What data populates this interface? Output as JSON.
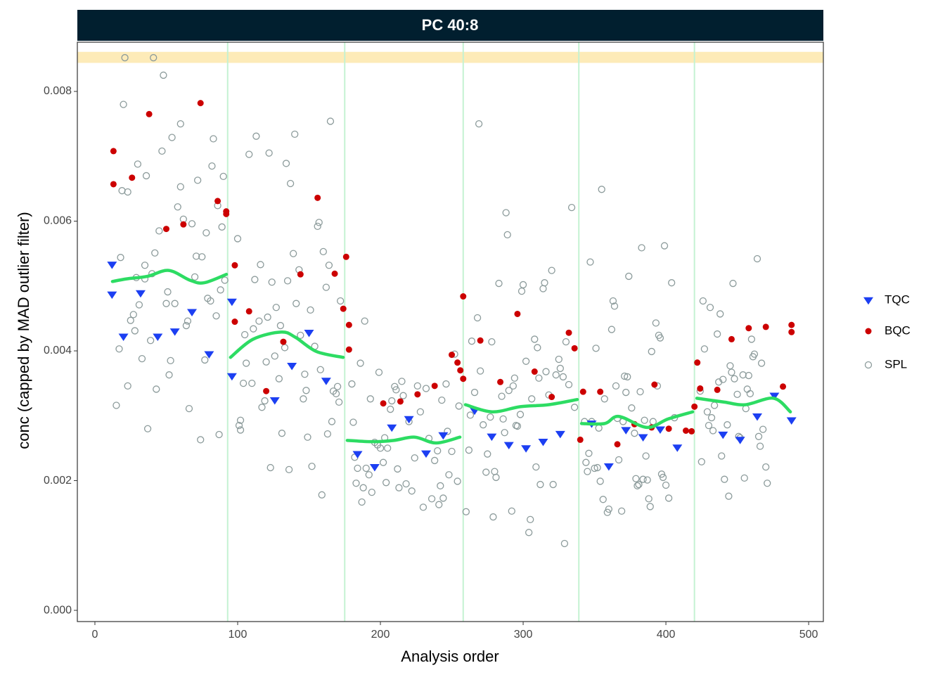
{
  "chart_data": {
    "type": "scatter",
    "title": "PC 40:8",
    "x_label": "Analysis order",
    "y_label": "conc (capped by MAD outlier filter)",
    "xlim": [
      -12.3,
      510.3
    ],
    "ylim": [
      -0.000173,
      0.008759
    ],
    "xticks": [
      0,
      100,
      200,
      300,
      400,
      500
    ],
    "yticks": [
      {
        "value": 0,
        "label": "0.000"
      },
      0.002,
      0.004,
      0.006,
      0.008
    ],
    "band": [
      0.00844,
      0.00861
    ],
    "band_color": "#fdebb8",
    "batch_lines": [
      93,
      175,
      258,
      339,
      420
    ],
    "batch_line_color": "#c4f2d2",
    "trend_color": "#2ddc63",
    "trend_lines": [
      {
        "x": [
          12.3,
          22.2,
          36.9,
          51.7,
          66.5,
          76.4,
          92.1
        ],
        "values": [
          0.00507,
          0.00511,
          0.00515,
          0.00524,
          0.00509,
          0.00505,
          0.00518
        ]
      },
      {
        "x": [
          95,
          110.8,
          130.5,
          140.4,
          155.2,
          173.9
        ],
        "values": [
          0.0039,
          0.00418,
          0.00429,
          0.00421,
          0.00399,
          0.0039
        ]
      },
      {
        "x": [
          176.8,
          194.6,
          209.4,
          224.1,
          238.9,
          255.7
        ],
        "values": [
          0.00262,
          0.0026,
          0.00262,
          0.00267,
          0.00258,
          0.00267
        ]
      },
      {
        "x": [
          259.6,
          278.3,
          298,
          317.7,
          337.9
        ],
        "values": [
          0.00317,
          0.00306,
          0.00314,
          0.00317,
          0.00325
        ]
      },
      {
        "x": [
          340.9,
          357.1,
          367,
          386.7,
          401.5,
          418.7
        ],
        "values": [
          0.00288,
          0.00288,
          0.00299,
          0.00282,
          0.00295,
          0.00306
        ]
      },
      {
        "x": [
          421.7,
          440.9,
          455.7,
          475.4,
          487.2
        ],
        "values": [
          0.00327,
          0.00321,
          0.00317,
          0.00327,
          0.00306
        ]
      }
    ],
    "series": [
      {
        "name": "TQC",
        "color": "#1c3ff2",
        "marker": "triangle-down",
        "x": [
          12,
          12,
          20,
          32,
          44,
          56,
          68,
          80,
          96,
          96,
          126,
          138,
          150,
          162,
          184,
          196,
          208,
          220,
          232,
          244,
          266,
          278,
          290,
          302,
          314,
          326,
          348,
          360,
          372,
          384,
          396,
          408,
          440,
          452,
          464,
          476,
          488
        ],
        "values": [
          0.00533,
          0.00487,
          0.00422,
          0.00489,
          0.00422,
          0.0043,
          0.0046,
          0.00395,
          0.00361,
          0.00476,
          0.00324,
          0.00377,
          0.00428,
          0.00354,
          0.00241,
          0.00221,
          0.00282,
          0.00295,
          0.00242,
          0.0027,
          0.00308,
          0.00268,
          0.00255,
          0.0025,
          0.0026,
          0.00272,
          0.00288,
          0.00222,
          0.00278,
          0.00267,
          0.00279,
          0.00251,
          0.00271,
          0.00263,
          0.00299,
          0.00331,
          0.00293
        ]
      },
      {
        "name": "BQC",
        "color": "#cc0000",
        "marker": "circle",
        "x": [
          13,
          13,
          26,
          38,
          50,
          62,
          74,
          86,
          92,
          92,
          98,
          98,
          108,
          120,
          132,
          144,
          156,
          168,
          174,
          176,
          178,
          178,
          202,
          214,
          226,
          238,
          250,
          254,
          256,
          258,
          258,
          270,
          284,
          296,
          308,
          320,
          332,
          336,
          340,
          342,
          354,
          366,
          378,
          390,
          392,
          402,
          414,
          418,
          420,
          422,
          424,
          436,
          446,
          458,
          470,
          482,
          488,
          488
        ],
        "values": [
          0.00708,
          0.00657,
          0.00667,
          0.00765,
          0.00588,
          0.00595,
          0.00782,
          0.00631,
          0.00611,
          0.00615,
          0.00445,
          0.00532,
          0.00461,
          0.00338,
          0.00414,
          0.00518,
          0.00636,
          0.00519,
          0.00465,
          0.00545,
          0.0044,
          0.00402,
          0.00319,
          0.00322,
          0.00333,
          0.00346,
          0.00394,
          0.00382,
          0.0037,
          0.00357,
          0.00484,
          0.00416,
          0.00352,
          0.00457,
          0.00368,
          0.00329,
          0.00428,
          0.00404,
          0.00263,
          0.00337,
          0.00337,
          0.00256,
          0.00287,
          0.00282,
          0.00348,
          0.0028,
          0.00277,
          0.00276,
          0.00314,
          0.00382,
          0.00342,
          0.0034,
          0.00418,
          0.00435,
          0.00437,
          0.00345,
          0.0044,
          0.00429
        ]
      },
      {
        "name": "SPL",
        "color": "#8c9b9b",
        "marker": "circle-open",
        "x": [
          15,
          17,
          18,
          19,
          20,
          21,
          23,
          23,
          25,
          27,
          28,
          29,
          30,
          31,
          33,
          35,
          35,
          36,
          37,
          39,
          40,
          41,
          42,
          43,
          45,
          47,
          48,
          50,
          51,
          52,
          53,
          54,
          56,
          58,
          60,
          60,
          62,
          64,
          65,
          66,
          68,
          70,
          71,
          72,
          74,
          75,
          77,
          78,
          79,
          81,
          82,
          83,
          85,
          86,
          87,
          88,
          89,
          90,
          91,
          100,
          101,
          102,
          102,
          104,
          105,
          106,
          108,
          110,
          111,
          112,
          113,
          115,
          116,
          117,
          119,
          120,
          121,
          122,
          123,
          124,
          126,
          127,
          129,
          130,
          131,
          133,
          134,
          135,
          136,
          137,
          139,
          140,
          141,
          143,
          144,
          146,
          147,
          148,
          149,
          151,
          152,
          154,
          156,
          157,
          158,
          159,
          160,
          162,
          163,
          164,
          165,
          166,
          167,
          169,
          170,
          171,
          172,
          180,
          181,
          182,
          183,
          184,
          186,
          187,
          188,
          189,
          190,
          192,
          193,
          194,
          196,
          198,
          199,
          200,
          202,
          203,
          204,
          205,
          207,
          208,
          210,
          211,
          212,
          213,
          215,
          216,
          218,
          220,
          222,
          224,
          226,
          228,
          230,
          232,
          234,
          236,
          238,
          240,
          241,
          242,
          243,
          244,
          246,
          247,
          248,
          250,
          252,
          254,
          255,
          260,
          262,
          263,
          264,
          266,
          268,
          269,
          270,
          272,
          274,
          275,
          277,
          278,
          279,
          280,
          281,
          283,
          285,
          286,
          287,
          288,
          289,
          290,
          292,
          293,
          294,
          295,
          296,
          298,
          299,
          300,
          302,
          304,
          305,
          306,
          308,
          309,
          310,
          311,
          312,
          314,
          315,
          316,
          318,
          320,
          321,
          323,
          325,
          326,
          328,
          329,
          330,
          332,
          334,
          336,
          343,
          344,
          345,
          346,
          347,
          348,
          350,
          351,
          352,
          353,
          354,
          355,
          356,
          357,
          359,
          360,
          362,
          363,
          364,
          365,
          366,
          367,
          369,
          370,
          371,
          372,
          373,
          374,
          376,
          378,
          379,
          380,
          381,
          382,
          383,
          384,
          385,
          386,
          387,
          388,
          389,
          390,
          391,
          393,
          394,
          395,
          396,
          397,
          398,
          399,
          400,
          402,
          404,
          406,
          424,
          425,
          426,
          427,
          429,
          430,
          431,
          432,
          433,
          434,
          436,
          437,
          438,
          439,
          440,
          441,
          443,
          444,
          445,
          446,
          447,
          448,
          450,
          451,
          452,
          454,
          455,
          456,
          457,
          458,
          459,
          460,
          461,
          462,
          464,
          465,
          466,
          467,
          468,
          470,
          471
        ],
        "values": [
          0.00316,
          0.00403,
          0.00544,
          0.00647,
          0.0078,
          0.00852,
          0.00346,
          0.00645,
          0.00447,
          0.00456,
          0.00431,
          0.00513,
          0.00688,
          0.00471,
          0.00388,
          0.00511,
          0.00532,
          0.0067,
          0.0028,
          0.00416,
          0.00519,
          0.00852,
          0.00551,
          0.00341,
          0.00585,
          0.00708,
          0.00825,
          0.00473,
          0.00491,
          0.00363,
          0.00385,
          0.00729,
          0.00473,
          0.00622,
          0.0075,
          0.00653,
          0.00603,
          0.00439,
          0.00446,
          0.00311,
          0.00596,
          0.00514,
          0.00546,
          0.00663,
          0.00263,
          0.00545,
          0.00386,
          0.00582,
          0.00481,
          0.00477,
          0.00685,
          0.00727,
          0.00454,
          0.00624,
          0.00271,
          0.00494,
          0.00591,
          0.00669,
          0.00509,
          0.00573,
          0.00285,
          0.00293,
          0.00278,
          0.0035,
          0.00425,
          0.00381,
          0.00703,
          0.0035,
          0.00434,
          0.0051,
          0.00731,
          0.00446,
          0.00533,
          0.00313,
          0.00323,
          0.00383,
          0.00452,
          0.00705,
          0.0022,
          0.00506,
          0.00392,
          0.00467,
          0.00357,
          0.00439,
          0.00273,
          0.00405,
          0.00689,
          0.00508,
          0.00217,
          0.00658,
          0.0055,
          0.00734,
          0.00473,
          0.00525,
          0.00424,
          0.00326,
          0.00364,
          0.00339,
          0.00267,
          0.00463,
          0.00222,
          0.00407,
          0.00592,
          0.00598,
          0.00371,
          0.00178,
          0.00553,
          0.00498,
          0.00272,
          0.00532,
          0.00754,
          0.00291,
          0.00338,
          0.00334,
          0.00345,
          0.00321,
          0.00477,
          0.00349,
          0.0029,
          0.00236,
          0.00196,
          0.00219,
          0.00381,
          0.00167,
          0.00189,
          0.00446,
          0.00219,
          0.00209,
          0.00326,
          0.00182,
          0.00259,
          0.00255,
          0.00367,
          0.0025,
          0.00228,
          0.00266,
          0.00197,
          0.0025,
          0.0031,
          0.00323,
          0.00345,
          0.0034,
          0.00218,
          0.00189,
          0.00353,
          0.00331,
          0.00195,
          0.00291,
          0.00184,
          0.00235,
          0.00346,
          0.00306,
          0.00159,
          0.00342,
          0.00265,
          0.00172,
          0.00231,
          0.00246,
          0.00163,
          0.00192,
          0.00324,
          0.00173,
          0.00349,
          0.00276,
          0.00209,
          0.00245,
          0.00395,
          0.00199,
          0.00315,
          0.00152,
          0.00247,
          0.00301,
          0.00415,
          0.00336,
          0.00451,
          0.0075,
          0.00369,
          0.00286,
          0.00213,
          0.00241,
          0.00298,
          0.00414,
          0.00144,
          0.00214,
          0.00205,
          0.00504,
          0.0033,
          0.00295,
          0.00274,
          0.00613,
          0.00579,
          0.00339,
          0.00153,
          0.00346,
          0.00358,
          0.00285,
          0.00284,
          0.00302,
          0.00492,
          0.00502,
          0.00384,
          0.0012,
          0.0014,
          0.00326,
          0.00418,
          0.00221,
          0.00405,
          0.00358,
          0.00194,
          0.00496,
          0.00505,
          0.00368,
          0.00332,
          0.00524,
          0.00194,
          0.00363,
          0.00387,
          0.00373,
          0.0036,
          0.00103,
          0.00414,
          0.00348,
          0.00621,
          0.00313,
          0.00291,
          0.00228,
          0.00214,
          0.00242,
          0.00537,
          0.00291,
          0.00219,
          0.00404,
          0.0022,
          0.00281,
          0.00199,
          0.00649,
          0.00171,
          0.00326,
          0.00151,
          0.00156,
          0.00433,
          0.00477,
          0.00469,
          0.00346,
          0.00296,
          0.00232,
          0.00153,
          0.00291,
          0.00361,
          0.00336,
          0.0036,
          0.00515,
          0.00312,
          0.00273,
          0.00203,
          0.00192,
          0.00194,
          0.00337,
          0.00559,
          0.00202,
          0.00293,
          0.00238,
          0.00201,
          0.00172,
          0.0016,
          0.00399,
          0.00291,
          0.00443,
          0.00346,
          0.00424,
          0.0042,
          0.0021,
          0.00205,
          0.00562,
          0.00193,
          0.00173,
          0.00505,
          0.00297,
          0.00338,
          0.00229,
          0.00477,
          0.00403,
          0.00306,
          0.00285,
          0.00467,
          0.00297,
          0.00277,
          0.00316,
          0.00426,
          0.00352,
          0.00457,
          0.00238,
          0.00356,
          0.00202,
          0.00286,
          0.00176,
          0.00377,
          0.00367,
          0.00504,
          0.00357,
          0.00333,
          0.00268,
          0.00266,
          0.00363,
          0.00204,
          0.00311,
          0.00341,
          0.00362,
          0.00334,
          0.00418,
          0.00391,
          0.00395,
          0.00542,
          0.00268,
          0.00253,
          0.00381,
          0.00279,
          0.00221,
          0.00196
        ]
      }
    ],
    "legend_position": "right"
  }
}
